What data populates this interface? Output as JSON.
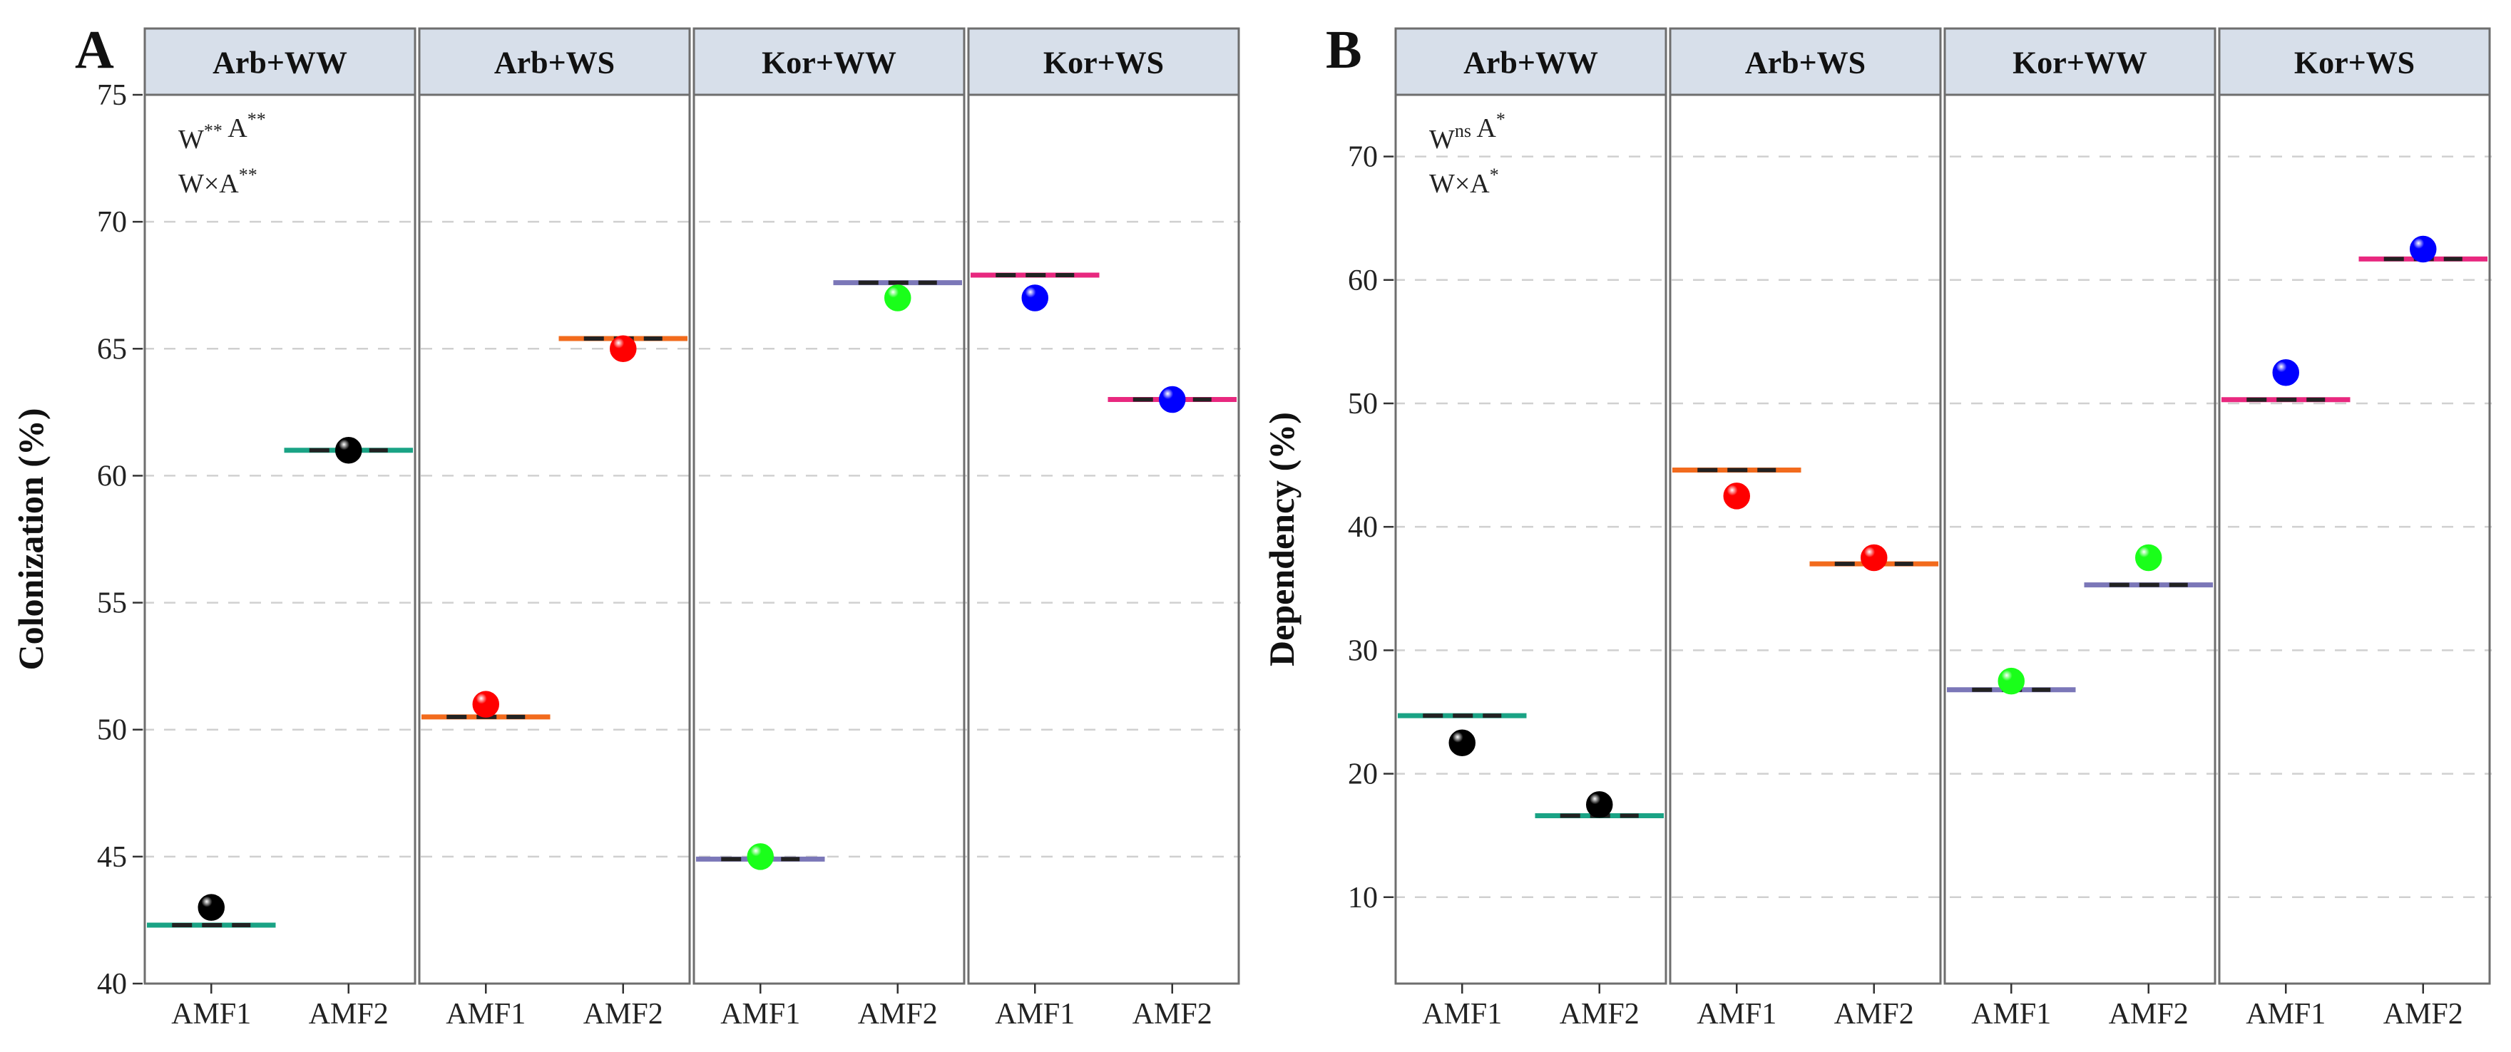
{
  "chart_data": [
    {
      "type": "scatter",
      "panel_label": "A",
      "ylabel": "Colonization  (%)",
      "ylim": [
        40,
        75
      ],
      "yticks": [
        40,
        45,
        50,
        55,
        60,
        65,
        70,
        75
      ],
      "grid": true,
      "annotation_lines": [
        "W** A**",
        "W×A**"
      ],
      "facets": [
        {
          "label": "Arb+WW",
          "categories": [
            "AMF1",
            "AMF2"
          ],
          "points": [
            {
              "x": "AMF1",
              "y": 43.0,
              "color": "#000000"
            },
            {
              "x": "AMF2",
              "y": 61.0,
              "color": "#000000"
            }
          ],
          "lines": [
            {
              "x": "AMF1",
              "y": 42.3,
              "color": "#1aa385"
            },
            {
              "x": "AMF2",
              "y": 61.0,
              "color": "#1aa385"
            }
          ]
        },
        {
          "label": "Arb+WS",
          "categories": [
            "AMF1",
            "AMF2"
          ],
          "points": [
            {
              "x": "AMF1",
              "y": 51.0,
              "color": "#ff0000"
            },
            {
              "x": "AMF2",
              "y": 65.0,
              "color": "#ff0000"
            }
          ],
          "lines": [
            {
              "x": "AMF1",
              "y": 50.5,
              "color": "#f26b1d"
            },
            {
              "x": "AMF2",
              "y": 65.4,
              "color": "#f26b1d"
            }
          ]
        },
        {
          "label": "Kor+WW",
          "categories": [
            "AMF1",
            "AMF2"
          ],
          "points": [
            {
              "x": "AMF1",
              "y": 45.0,
              "color": "#1aff1a"
            },
            {
              "x": "AMF2",
              "y": 67.0,
              "color": "#1aff1a"
            }
          ],
          "lines": [
            {
              "x": "AMF1",
              "y": 44.9,
              "color": "#7b77b8"
            },
            {
              "x": "AMF2",
              "y": 67.6,
              "color": "#7b77b8"
            }
          ]
        },
        {
          "label": "Kor+WS",
          "categories": [
            "AMF1",
            "AMF2"
          ],
          "points": [
            {
              "x": "AMF1",
              "y": 67.0,
              "color": "#0000ff"
            },
            {
              "x": "AMF2",
              "y": 63.0,
              "color": "#0000ff"
            }
          ],
          "lines": [
            {
              "x": "AMF1",
              "y": 67.9,
              "color": "#e8287f"
            },
            {
              "x": "AMF2",
              "y": 63.0,
              "color": "#e8287f"
            }
          ]
        }
      ]
    },
    {
      "type": "scatter",
      "panel_label": "B",
      "ylabel": "Dependency (%)",
      "ylim": [
        3,
        75
      ],
      "yticks": [
        10,
        20,
        30,
        40,
        50,
        60,
        70
      ],
      "grid": true,
      "annotation_lines": [
        "Wns A*",
        "W×A*"
      ],
      "facets": [
        {
          "label": "Arb+WW",
          "categories": [
            "AMF1",
            "AMF2"
          ],
          "points": [
            {
              "x": "AMF1",
              "y": 22.5,
              "color": "#000000"
            },
            {
              "x": "AMF2",
              "y": 17.5,
              "color": "#000000"
            }
          ],
          "lines": [
            {
              "x": "AMF1",
              "y": 24.7,
              "color": "#1aa385"
            },
            {
              "x": "AMF2",
              "y": 16.6,
              "color": "#1aa385"
            }
          ]
        },
        {
          "label": "Arb+WS",
          "categories": [
            "AMF1",
            "AMF2"
          ],
          "points": [
            {
              "x": "AMF1",
              "y": 42.5,
              "color": "#ff0000"
            },
            {
              "x": "AMF2",
              "y": 37.5,
              "color": "#ff0000"
            }
          ],
          "lines": [
            {
              "x": "AMF1",
              "y": 44.6,
              "color": "#f26b1d"
            },
            {
              "x": "AMF2",
              "y": 37.0,
              "color": "#f26b1d"
            }
          ]
        },
        {
          "label": "Kor+WW",
          "categories": [
            "AMF1",
            "AMF2"
          ],
          "points": [
            {
              "x": "AMF1",
              "y": 27.5,
              "color": "#1aff1a"
            },
            {
              "x": "AMF2",
              "y": 37.5,
              "color": "#1aff1a"
            }
          ],
          "lines": [
            {
              "x": "AMF1",
              "y": 26.8,
              "color": "#7b77b8"
            },
            {
              "x": "AMF2",
              "y": 35.3,
              "color": "#7b77b8"
            }
          ]
        },
        {
          "label": "Kor+WS",
          "categories": [
            "AMF1",
            "AMF2"
          ],
          "points": [
            {
              "x": "AMF1",
              "y": 52.5,
              "color": "#0000ff"
            },
            {
              "x": "AMF2",
              "y": 62.5,
              "color": "#0000ff"
            }
          ],
          "lines": [
            {
              "x": "AMF1",
              "y": 50.3,
              "color": "#e8287f"
            },
            {
              "x": "AMF2",
              "y": 61.7,
              "color": "#e8287f"
            }
          ]
        }
      ]
    }
  ]
}
